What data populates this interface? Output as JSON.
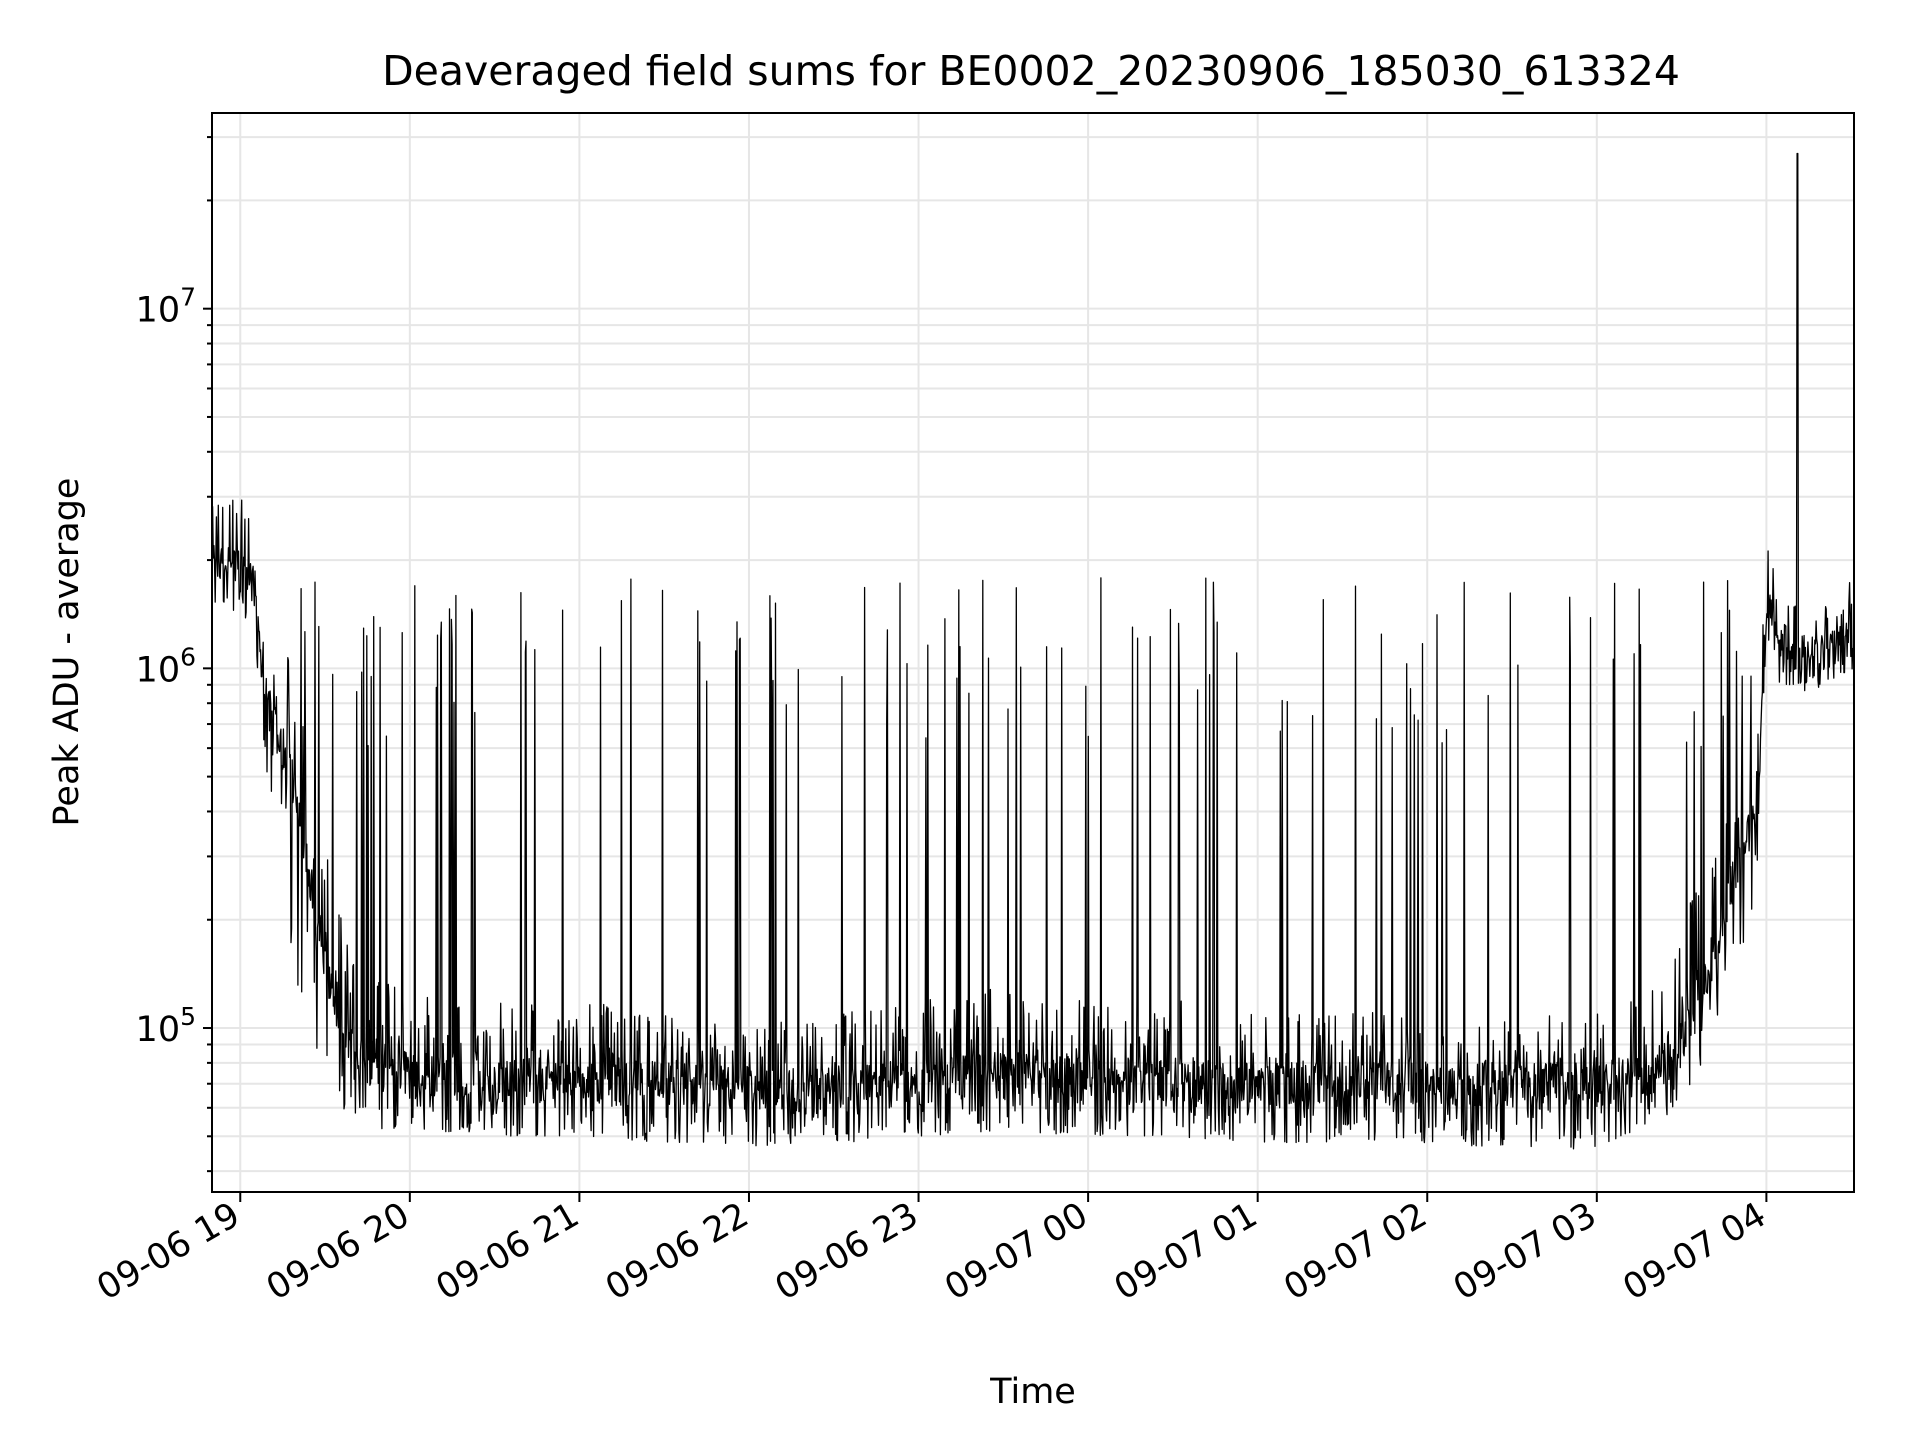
{
  "chart_data": {
    "type": "line",
    "title": "Deaveraged field sums for BE0002_20230906_185030_613324",
    "xlabel": "Time",
    "ylabel": "Peak ADU - average",
    "yscale": "log",
    "ylim": [
      35000,
      35000000
    ],
    "xlim": [
      "2023-09-06 18:50",
      "2023-09-07 04:31"
    ],
    "grid": true,
    "line_color": "#000000",
    "x_ticks": [
      {
        "value": "2023-09-06 19:00",
        "label": "09-06 19"
      },
      {
        "value": "2023-09-06 20:00",
        "label": "09-06 20"
      },
      {
        "value": "2023-09-06 21:00",
        "label": "09-06 21"
      },
      {
        "value": "2023-09-06 22:00",
        "label": "09-06 22"
      },
      {
        "value": "2023-09-06 23:00",
        "label": "09-06 23"
      },
      {
        "value": "2023-09-07 00:00",
        "label": "09-07 00"
      },
      {
        "value": "2023-09-07 01:00",
        "label": "09-07 01"
      },
      {
        "value": "2023-09-07 02:00",
        "label": "09-07 02"
      },
      {
        "value": "2023-09-07 03:00",
        "label": "09-07 03"
      },
      {
        "value": "2023-09-07 04:00",
        "label": "09-07 04"
      }
    ],
    "y_ticks": [
      {
        "value": 100000,
        "mantissa": "10",
        "exponent": "5"
      },
      {
        "value": 1000000,
        "mantissa": "10",
        "exponent": "6"
      },
      {
        "value": 10000000,
        "mantissa": "10",
        "exponent": "7"
      }
    ],
    "series": [
      {
        "x": [
          "2023-09-06 18:50",
          "2023-09-06 18:55",
          "2023-09-06 19:00",
          "2023-09-06 19:05",
          "2023-09-06 19:08",
          "2023-09-06 19:10",
          "2023-09-06 19:12",
          "2023-09-06 19:15",
          "2023-09-06 19:20",
          "2023-09-06 19:25",
          "2023-09-06 19:30",
          "2023-09-06 19:35",
          "2023-09-06 19:40",
          "2023-09-06 19:45",
          "2023-09-06 19:50",
          "2023-09-06 20:00",
          "2023-09-06 20:30",
          "2023-09-06 21:00",
          "2023-09-06 21:30",
          "2023-09-06 22:00",
          "2023-09-06 22:30",
          "2023-09-06 23:00",
          "2023-09-06 23:30",
          "2023-09-07 00:00",
          "2023-09-07 00:30",
          "2023-09-07 01:00",
          "2023-09-07 01:30",
          "2023-09-07 02:00",
          "2023-09-07 02:30",
          "2023-09-07 03:00",
          "2023-09-07 03:20",
          "2023-09-07 03:30",
          "2023-09-07 03:40",
          "2023-09-07 03:50",
          "2023-09-07 03:57",
          "2023-09-07 04:00",
          "2023-09-07 04:05",
          "2023-09-07 04:10",
          "2023-09-07 04:15",
          "2023-09-07 04:20",
          "2023-09-07 04:25",
          "2023-09-07 04:31"
        ],
        "baseline": [
          1800000,
          2000000,
          1900000,
          1700000,
          900000,
          800000,
          700000,
          600000,
          450000,
          250000,
          150000,
          100000,
          85000,
          80000,
          78000,
          75000,
          72000,
          72000,
          70000,
          68000,
          68000,
          72000,
          75000,
          72000,
          72000,
          70000,
          70000,
          72000,
          70000,
          70000,
          75000,
          90000,
          150000,
          300000,
          400000,
          1500000,
          1200000,
          1100000,
          1050000,
          1100000,
          1150000,
          1200000
        ],
        "noise_low": [
          1400000,
          1500000,
          1400000,
          1200000,
          500000,
          400000,
          350000,
          250000,
          130000,
          100000,
          70000,
          60000,
          55000,
          55000,
          52000,
          52000,
          50000,
          50000,
          48000,
          47000,
          47000,
          50000,
          52000,
          50000,
          50000,
          48000,
          48000,
          48000,
          46000,
          46000,
          55000,
          60000,
          90000,
          150000,
          250000,
          1100000,
          900000,
          900000,
          850000,
          900000,
          950000,
          1000000
        ],
        "noise_high": [
          2800000,
          3500000,
          3000000,
          2500000,
          1300000,
          1200000,
          1100000,
          1200000,
          1000000,
          700000,
          400000,
          250000,
          180000,
          150000,
          140000,
          130000,
          120000,
          120000,
          110000,
          110000,
          110000,
          120000,
          130000,
          120000,
          120000,
          110000,
          110000,
          115000,
          110000,
          110000,
          130000,
          200000,
          300000,
          500000,
          700000,
          2500000,
          1800000,
          1500000,
          1400000,
          1500000,
          1600000,
          1800000
        ]
      }
    ],
    "spike_level": 1700000,
    "peak": {
      "x": "2023-09-07 04:11",
      "y": 27000000
    }
  }
}
